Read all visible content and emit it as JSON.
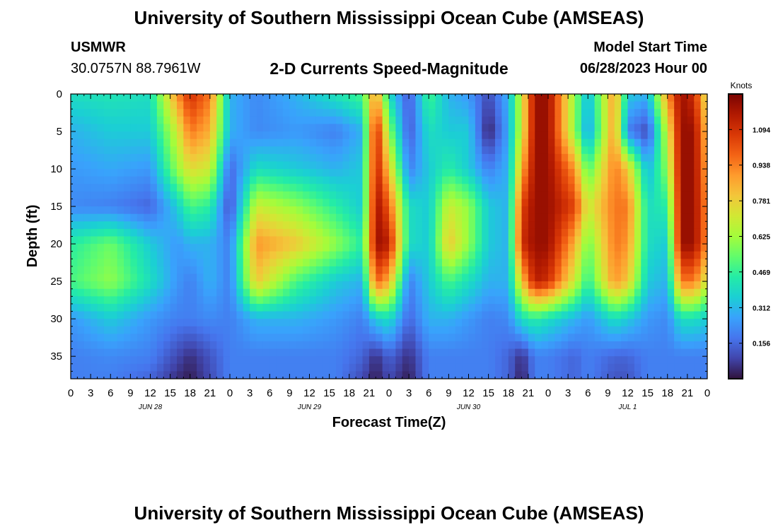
{
  "page": {
    "title": "University of Southern Mississippi Ocean Cube (AMSEAS)",
    "title_repeat": "University of Southern Mississippi Ocean Cube (AMSEAS)",
    "station_id": "USMWR",
    "station_coords": "30.0757N  88.7961W",
    "plot_title": "2-D Currents Speed-Magnitude",
    "model_start_label": "Model Start Time",
    "model_start_value": "06/28/2023 Hour 00"
  },
  "chart_data": {
    "type": "heatmap",
    "title": "2-D Currents Speed-Magnitude",
    "xlabel": "Forecast Time(Z)",
    "ylabel": "Depth (ft)",
    "x_unit": "hours from model start",
    "xlim": [
      0,
      96
    ],
    "ylim": [
      0,
      38
    ],
    "y_inverted": true,
    "x_ticks": [
      0,
      3,
      6,
      9,
      12,
      15,
      18,
      21,
      24,
      27,
      30,
      33,
      36,
      39,
      42,
      45,
      48,
      51,
      54,
      57,
      60,
      63,
      66,
      69,
      72,
      75,
      78,
      81,
      84,
      87,
      90,
      93,
      96
    ],
    "x_tick_labels": [
      "0",
      "3",
      "6",
      "9",
      "12",
      "15",
      "18",
      "21",
      "0",
      "3",
      "6",
      "9",
      "12",
      "15",
      "18",
      "21",
      "0",
      "3",
      "6",
      "9",
      "12",
      "15",
      "18",
      "21",
      "0",
      "3",
      "6",
      "9",
      "12",
      "15",
      "18",
      "21",
      "0"
    ],
    "y_ticks": [
      0,
      5,
      10,
      15,
      20,
      25,
      30,
      35
    ],
    "y_tick_labels": [
      "0",
      "5",
      "10",
      "15",
      "20",
      "25",
      "30",
      "35"
    ],
    "day_labels": [
      {
        "x": 12,
        "label": "JUN 28"
      },
      {
        "x": 36,
        "label": "JUN 29"
      },
      {
        "x": 60,
        "label": "JUN 30"
      },
      {
        "x": 84,
        "label": "JUL 1"
      }
    ],
    "colorbar": {
      "label": "Knots",
      "min": 0,
      "max": 1.25,
      "ticks": [
        0.156,
        0.312,
        0.469,
        0.625,
        0.781,
        0.938,
        1.094
      ],
      "tick_labels": [
        "0.156",
        "0.312",
        "0.469",
        "0.625",
        "0.781",
        "0.938",
        "1.094"
      ],
      "colormap": [
        "#30123b",
        "#4145ab",
        "#4675ed",
        "#39a2fc",
        "#1bcfd4",
        "#24eca6",
        "#61fc6c",
        "#a4fc3b",
        "#d1e834",
        "#f3c63a",
        "#fe9b2d",
        "#f36315",
        "#d93806",
        "#b11901",
        "#7a0402"
      ]
    },
    "x_hours": [
      0,
      6,
      12,
      16,
      18,
      21,
      24,
      28,
      34,
      40,
      44,
      46,
      48,
      51,
      54,
      57,
      60,
      63,
      66,
      68,
      70,
      72,
      76,
      78,
      82,
      84,
      87,
      90,
      92,
      94,
      96
    ],
    "depths_ft": [
      0,
      5,
      10,
      15,
      20,
      25,
      30,
      35,
      38
    ],
    "values_knots": [
      [
        0.4,
        0.42,
        0.4,
        0.9,
        1.1,
        0.95,
        0.3,
        0.22,
        0.3,
        0.42,
        0.5,
        0.9,
        0.4,
        0.12,
        0.5,
        0.3,
        0.25,
        0.1,
        0.3,
        0.7,
        1.2,
        1.2,
        0.6,
        0.3,
        0.9,
        0.35,
        0.3,
        0.9,
        1.2,
        1.1,
        0.7
      ],
      [
        0.3,
        0.35,
        0.35,
        0.7,
        0.95,
        0.85,
        0.3,
        0.22,
        0.25,
        0.2,
        0.3,
        1.15,
        0.6,
        0.12,
        0.4,
        0.35,
        0.35,
        0.02,
        0.28,
        0.7,
        1.2,
        1.2,
        0.6,
        0.25,
        0.9,
        0.2,
        0.1,
        0.7,
        1.2,
        1.2,
        0.8
      ],
      [
        0.25,
        0.28,
        0.25,
        0.6,
        0.75,
        0.7,
        0.15,
        0.4,
        0.35,
        0.3,
        0.35,
        1.15,
        0.8,
        0.2,
        0.35,
        0.45,
        0.35,
        0.2,
        0.3,
        0.85,
        1.2,
        1.2,
        0.9,
        0.5,
        0.95,
        0.8,
        0.3,
        0.6,
        1.2,
        1.2,
        0.85
      ],
      [
        0.22,
        0.2,
        0.15,
        0.35,
        0.5,
        0.45,
        0.1,
        0.7,
        0.6,
        0.45,
        0.35,
        1.2,
        1.0,
        0.4,
        0.35,
        0.7,
        0.6,
        0.35,
        0.3,
        1.05,
        1.2,
        1.2,
        1.05,
        0.7,
        0.95,
        0.95,
        0.4,
        0.45,
        1.2,
        1.2,
        0.9
      ],
      [
        0.45,
        0.55,
        0.35,
        0.25,
        0.3,
        0.3,
        0.2,
        0.9,
        0.8,
        0.6,
        0.45,
        1.2,
        1.15,
        0.4,
        0.35,
        0.8,
        0.6,
        0.35,
        0.3,
        1.1,
        1.2,
        1.2,
        0.85,
        0.55,
        0.95,
        0.9,
        0.4,
        0.35,
        1.2,
        1.2,
        0.9
      ],
      [
        0.5,
        0.6,
        0.4,
        0.25,
        0.2,
        0.3,
        0.2,
        0.8,
        0.5,
        0.35,
        0.3,
        1.0,
        0.85,
        0.2,
        0.35,
        0.5,
        0.4,
        0.3,
        0.3,
        0.8,
        1.15,
        1.1,
        0.7,
        0.45,
        0.9,
        0.8,
        0.35,
        0.3,
        0.95,
        0.95,
        0.7
      ],
      [
        0.25,
        0.35,
        0.25,
        0.2,
        0.2,
        0.22,
        0.2,
        0.3,
        0.3,
        0.25,
        0.2,
        0.35,
        0.4,
        0.15,
        0.3,
        0.3,
        0.25,
        0.2,
        0.22,
        0.4,
        0.45,
        0.4,
        0.3,
        0.25,
        0.4,
        0.35,
        0.25,
        0.22,
        0.4,
        0.4,
        0.35
      ],
      [
        0.2,
        0.22,
        0.2,
        0.1,
        0.05,
        0.12,
        0.2,
        0.2,
        0.2,
        0.2,
        0.15,
        0.05,
        0.15,
        0.05,
        0.2,
        0.2,
        0.2,
        0.2,
        0.15,
        0.05,
        0.2,
        0.2,
        0.15,
        0.2,
        0.15,
        0.15,
        0.2,
        0.2,
        0.2,
        0.2,
        0.2
      ],
      [
        0.2,
        0.2,
        0.15,
        0.05,
        0.02,
        0.1,
        0.2,
        0.2,
        0.2,
        0.2,
        0.1,
        0.02,
        0.1,
        0.02,
        0.2,
        0.2,
        0.2,
        0.2,
        0.15,
        0.02,
        0.2,
        0.2,
        0.15,
        0.2,
        0.12,
        0.12,
        0.2,
        0.2,
        0.2,
        0.2,
        0.2
      ]
    ]
  }
}
